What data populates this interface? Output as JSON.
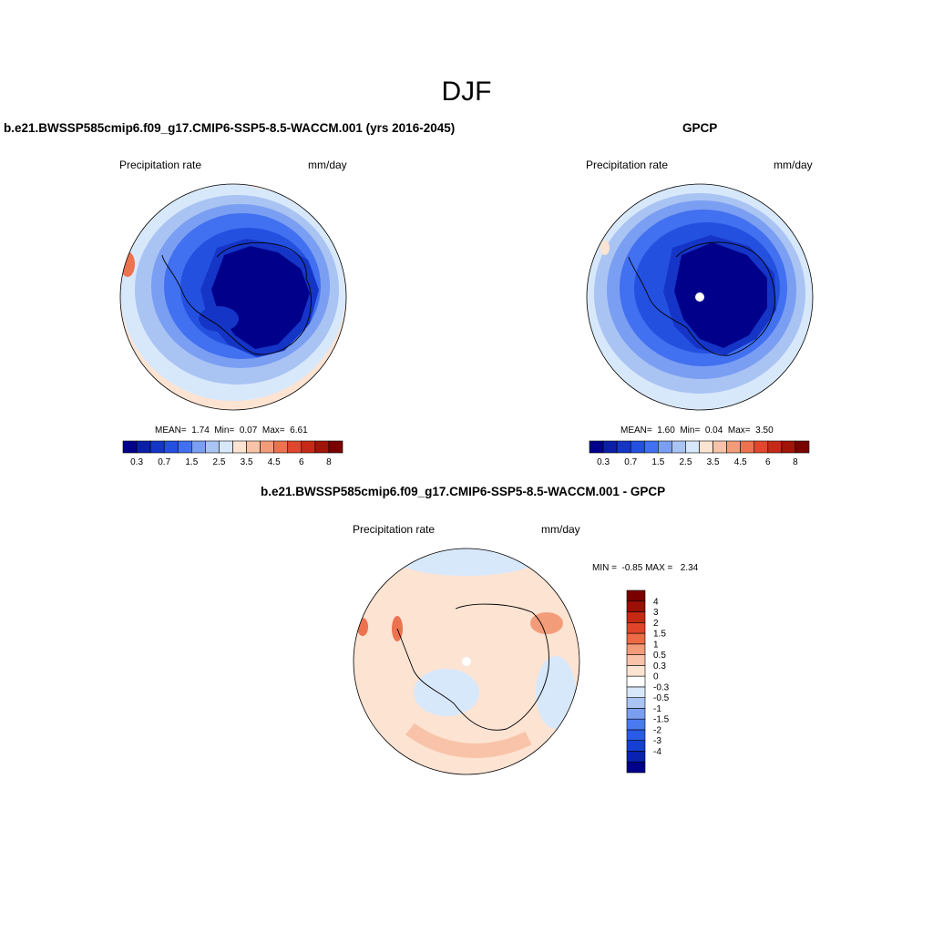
{
  "main_title": "DJF",
  "panels": [
    {
      "title": "b.e21.BWSSP585cmip6.f09_g17.CMIP6-SSP5-8.5-WACCM.001 (yrs 2016-2045)",
      "variable": "Precipitation rate",
      "units": "mm/day",
      "stats": {
        "mean_label": "MEAN=",
        "mean": "1.74",
        "min_label": "Min=",
        "min": "0.07",
        "max_label": "Max=",
        "max": "6.61"
      }
    },
    {
      "title": "GPCP",
      "variable": "Precipitation rate",
      "units": "mm/day",
      "stats": {
        "mean_label": "MEAN=",
        "mean": "1.60",
        "min_label": "Min=",
        "min": "0.04",
        "max_label": "Max=",
        "max": "3.50"
      }
    },
    {
      "title": "b.e21.BWSSP585cmip6.f09_g17.CMIP6-SSP5-8.5-WACCM.001 - GPCP",
      "variable": "Precipitation rate",
      "units": "mm/day",
      "stats": {
        "min_label": "MIN =",
        "min": "-0.85",
        "max_label": "MAX =",
        "max": "2.34"
      }
    }
  ],
  "colorbar_h": {
    "colors": [
      "#00008b",
      "#0a1ea8",
      "#1535c7",
      "#2450e0",
      "#4170f0",
      "#7a9ef2",
      "#a9c3f3",
      "#d8e8fb",
      "#fde3d2",
      "#f8c3a8",
      "#f29c7a",
      "#ec7250",
      "#e0472e",
      "#c52a18",
      "#a11408",
      "#7a0000"
    ],
    "tick_labels": [
      "0.3",
      "0.7",
      "1.5",
      "2.5",
      "3.5",
      "4.5",
      "6",
      "8"
    ]
  },
  "colorbar_v": {
    "colors": [
      "#00008b",
      "#0a22b0",
      "#1540d2",
      "#2a5be6",
      "#4a7af0",
      "#7a9ef0",
      "#a9c3f3",
      "#d8e8fb",
      "#ffffff",
      "#fde3d2",
      "#f8c3a8",
      "#f29c7a",
      "#ec6a44",
      "#e0452a",
      "#c52a14",
      "#9a1006",
      "#7a0000"
    ],
    "tick_labels": [
      "4",
      "3",
      "2",
      "1.5",
      "1",
      "0.5",
      "0.3",
      "0",
      "-0.3",
      "-0.5",
      "-1",
      "-1.5",
      "-2",
      "-3",
      "-4"
    ]
  }
}
